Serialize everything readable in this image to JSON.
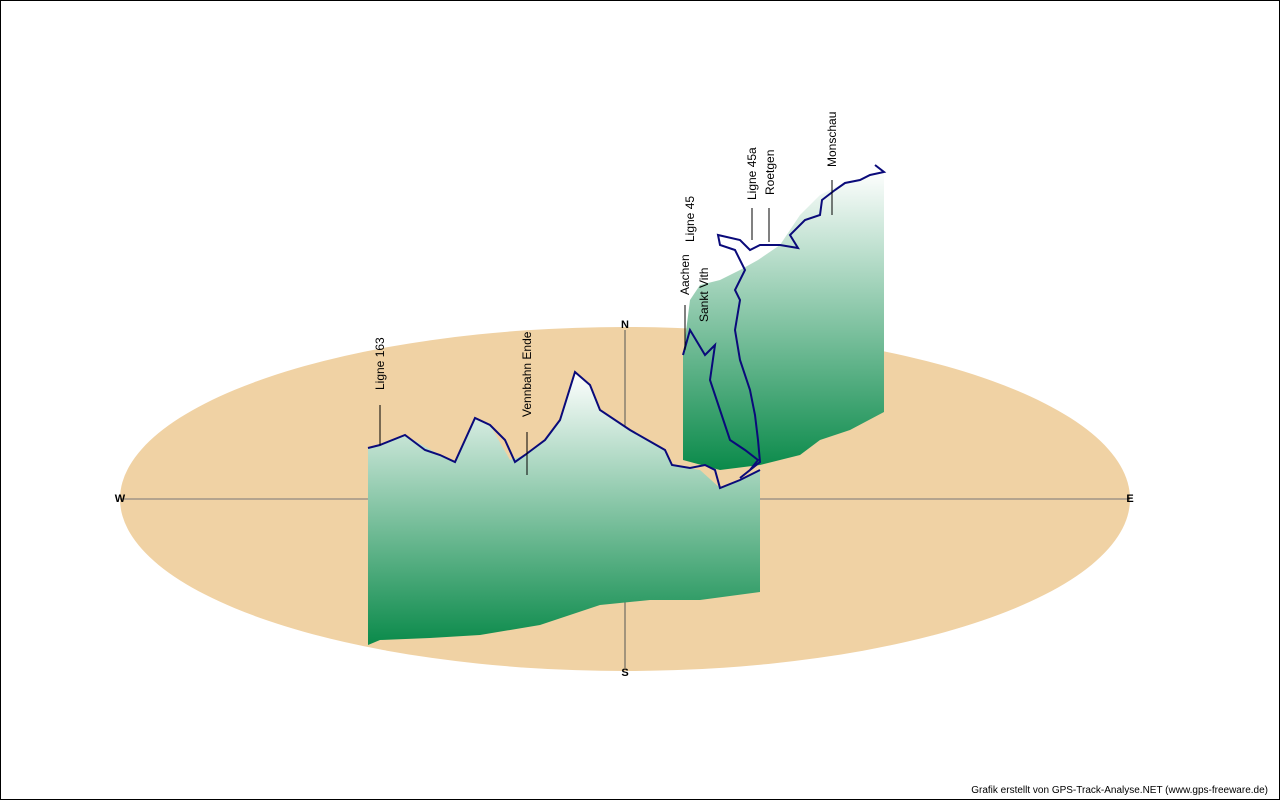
{
  "compass": {
    "north": "N",
    "south": "S",
    "east": "E",
    "west": "W"
  },
  "waypoints": [
    "Ligne 163",
    "Vennbahn Ende",
    "Aachen",
    "Sankt Vith",
    "Ligne 45",
    "Ligne 45a",
    "Roetgen",
    "Monschau"
  ],
  "footer": "Grafik erstellt von GPS-Track-Analyse.NET (www.gps-freeware.de)"
}
